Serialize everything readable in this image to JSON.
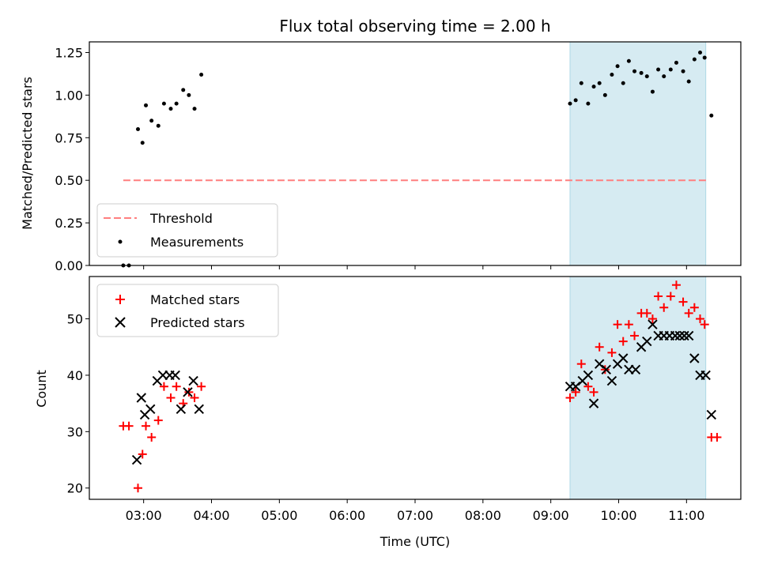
{
  "chart_data": [
    {
      "type": "scatter",
      "title": "Flux total observing time = 2.00 h",
      "ylabel": "Matched/Predicted stars",
      "xlabel": "",
      "ylim": [
        0,
        1.3125
      ],
      "yticks": [
        "0.00",
        "0.25",
        "0.50",
        "0.75",
        "1.00",
        "1.25"
      ],
      "ytick_values": [
        0,
        0.25,
        0.5,
        0.75,
        1.0,
        1.25
      ],
      "legend_position": "lower-left",
      "threshold": {
        "name": "Threshold",
        "value": 0.5,
        "x_range": [
          "02:42",
          "11:20"
        ],
        "color": "#ff7f7f",
        "style": "dashed"
      },
      "series": [
        {
          "name": "Measurements",
          "color": "#000000",
          "x": [
            "02:42",
            "02:47",
            "02:55",
            "02:59",
            "03:02",
            "03:07",
            "03:13",
            "03:18",
            "03:24",
            "03:29",
            "03:35",
            "03:40",
            "03:45",
            "03:51",
            "09:17",
            "09:22",
            "09:27",
            "09:33",
            "09:38",
            "09:43",
            "09:48",
            "09:54",
            "09:59",
            "10:04",
            "10:09",
            "10:14",
            "10:20",
            "10:25",
            "10:30",
            "10:35",
            "10:40",
            "10:46",
            "10:51",
            "10:57",
            "11:02",
            "11:07",
            "11:12",
            "11:16",
            "11:22"
          ],
          "y": [
            0.0,
            0.0,
            0.8,
            0.72,
            0.94,
            0.85,
            0.82,
            0.95,
            0.92,
            0.95,
            1.03,
            1.0,
            0.92,
            1.12,
            0.95,
            0.97,
            1.07,
            0.95,
            1.05,
            1.07,
            1.0,
            1.12,
            1.17,
            1.07,
            1.2,
            1.14,
            1.13,
            1.11,
            1.02,
            1.15,
            1.11,
            1.15,
            1.19,
            1.14,
            1.08,
            1.21,
            1.25,
            1.22,
            0.88
          ]
        }
      ]
    },
    {
      "type": "scatter",
      "title": "",
      "ylabel": "Count",
      "xlabel": "Time (UTC)",
      "ylim": [
        18,
        57.5
      ],
      "yticks": [
        "20",
        "30",
        "40",
        "50"
      ],
      "ytick_values": [
        20,
        30,
        40,
        50
      ],
      "xlim": [
        "02:12",
        "11:48"
      ],
      "xticks": [
        "03:00",
        "04:00",
        "05:00",
        "06:00",
        "07:00",
        "08:00",
        "09:00",
        "10:00",
        "11:00"
      ],
      "legend_position": "upper-left",
      "shaded_region": {
        "x_range": [
          "09:17",
          "11:17"
        ],
        "color": "#add8e6"
      },
      "series": [
        {
          "name": "Matched stars",
          "color": "#ff0000",
          "marker": "plus",
          "x": [
            "02:42",
            "02:47",
            "02:55",
            "02:59",
            "03:02",
            "03:07",
            "03:13",
            "03:18",
            "03:24",
            "03:29",
            "03:35",
            "03:40",
            "03:45",
            "03:51",
            "09:17",
            "09:22",
            "09:27",
            "09:33",
            "09:38",
            "09:43",
            "09:48",
            "09:54",
            "09:59",
            "10:04",
            "10:09",
            "10:14",
            "10:20",
            "10:25",
            "10:30",
            "10:35",
            "10:40",
            "10:46",
            "10:51",
            "10:57",
            "11:02",
            "11:07",
            "11:12",
            "11:16",
            "11:22",
            "11:27"
          ],
          "y": [
            31,
            31,
            20,
            26,
            31,
            29,
            32,
            38,
            36,
            38,
            35,
            37,
            36,
            38,
            36,
            37,
            42,
            38,
            37,
            45,
            41,
            44,
            49,
            46,
            49,
            47,
            51,
            51,
            50,
            54,
            52,
            54,
            56,
            53,
            51,
            52,
            50,
            49,
            29,
            29
          ]
        },
        {
          "name": "Predicted stars",
          "color": "#000000",
          "marker": "x",
          "x": [
            "02:54",
            "02:58",
            "03:01",
            "03:06",
            "03:12",
            "03:17",
            "03:23",
            "03:28",
            "03:33",
            "03:39",
            "03:44",
            "03:49",
            "09:17",
            "09:22",
            "09:28",
            "09:33",
            "09:38",
            "09:43",
            "09:49",
            "09:54",
            "09:59",
            "10:04",
            "10:09",
            "10:15",
            "10:20",
            "10:25",
            "10:30",
            "10:35",
            "10:40",
            "10:45",
            "10:50",
            "10:54",
            "10:58",
            "11:02",
            "11:07",
            "11:12",
            "11:17",
            "11:22"
          ],
          "y": [
            25,
            36,
            33,
            34,
            39,
            40,
            40,
            40,
            34,
            37,
            39,
            34,
            38,
            38,
            39,
            40,
            35,
            42,
            41,
            39,
            42,
            43,
            41,
            41,
            45,
            46,
            49,
            47,
            47,
            47,
            47,
            47,
            47,
            47,
            43,
            40,
            40,
            33
          ]
        }
      ]
    }
  ]
}
